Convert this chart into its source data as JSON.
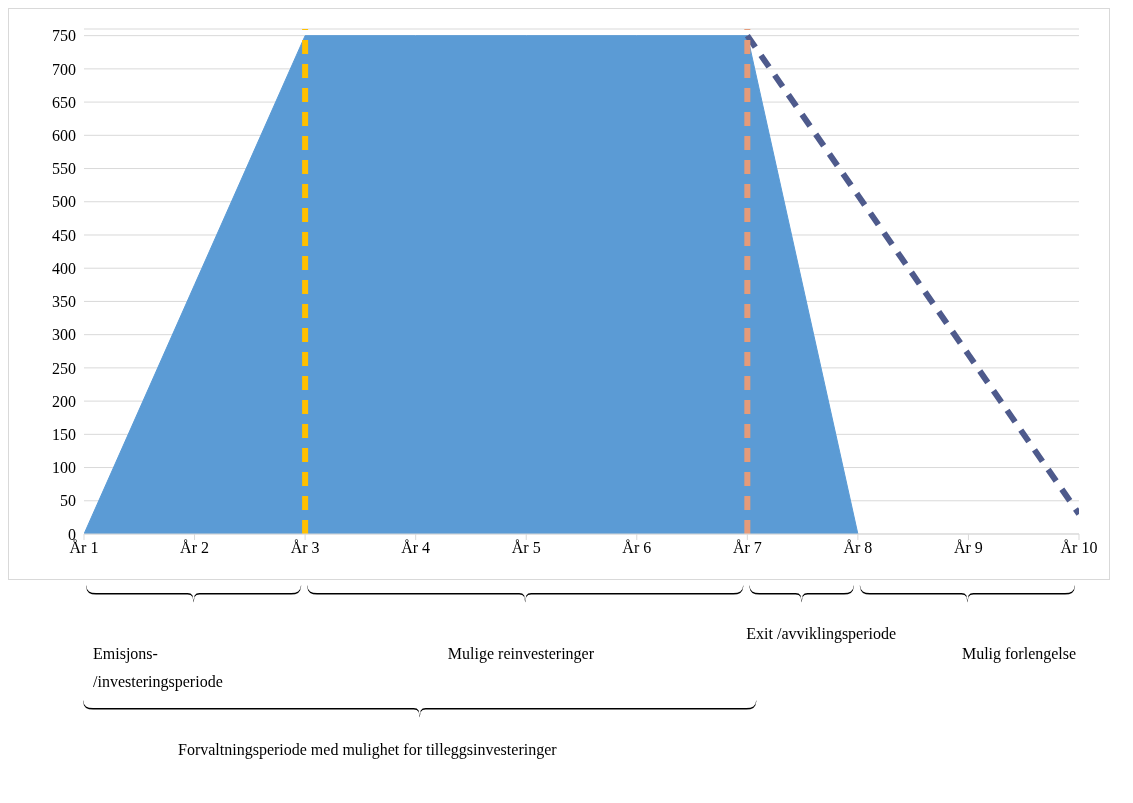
{
  "chart_data": {
    "type": "area",
    "categories": [
      "År 1",
      "År 2",
      "År 3",
      "År 4",
      "År 5",
      "År 6",
      "År 7",
      "År 8",
      "År 9",
      "År 10"
    ],
    "series": [
      {
        "color": "#5b9bd5",
        "values": [
          0,
          375,
          750,
          750,
          750,
          750,
          750,
          0,
          null,
          null
        ]
      },
      {
        "type": "line",
        "color": "#4e5a8c",
        "line_style": "dashed",
        "values": [
          null,
          null,
          null,
          null,
          null,
          null,
          750,
          510,
          270,
          30
        ]
      }
    ],
    "ylim": [
      0,
      760
    ],
    "yticks": [
      0,
      50,
      100,
      150,
      200,
      250,
      300,
      350,
      400,
      450,
      500,
      550,
      600,
      650,
      700,
      750
    ],
    "grid": "y",
    "legend": false,
    "ref_lines": [
      {
        "axis": "x",
        "value": "År 3",
        "color": "#ffc000",
        "line_style": "dashed"
      },
      {
        "axis": "x",
        "value": "År 7",
        "color": "#e59b7a",
        "line_style": "dashed"
      }
    ],
    "annotations": [
      "Emisjons-/investeringsperiode",
      "Mulige reinvesteringer",
      "Exit /avviklingsperiode",
      "Mulig forlengelse",
      "Forvaltningsperiode med mulighet for tilleggsinvesteringer"
    ]
  }
}
